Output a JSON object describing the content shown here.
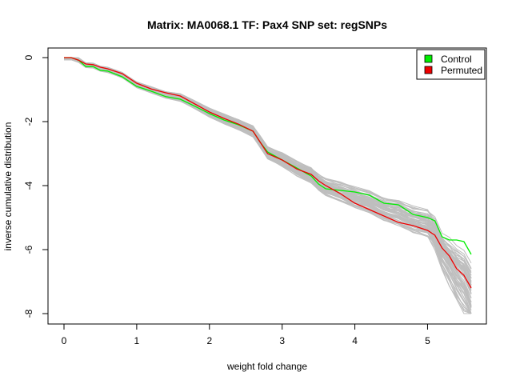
{
  "chart_data": {
    "type": "line",
    "title": "Matrix: MA0068.1 TF: Pax4 SNP set: regSNPs",
    "xlabel": "weight fold change",
    "ylabel": "inverse cumulative distribution",
    "xlim": [
      0,
      5.6
    ],
    "ylim": [
      -8,
      0
    ],
    "x_ticks": [
      0,
      1,
      2,
      3,
      4,
      5
    ],
    "y_ticks": [
      0,
      -2,
      -4,
      -6,
      -8
    ],
    "x_tick_labels": [
      "0",
      "1",
      "2",
      "3",
      "4",
      "5"
    ],
    "y_tick_labels": [
      "0",
      "-2",
      "-4",
      "-6",
      "-8"
    ],
    "grid": false,
    "legend_position": "top-right",
    "legend": [
      {
        "label": "Control",
        "color": "#00ee00"
      },
      {
        "label": "Permuted",
        "color": "#ee0000"
      }
    ],
    "background_series_color": "#bebebe",
    "background_series_count": 60,
    "series": [
      {
        "name": "Control",
        "color": "#00ee00",
        "x": [
          0.0,
          0.1,
          0.2,
          0.3,
          0.4,
          0.5,
          0.6,
          0.8,
          1.0,
          1.2,
          1.4,
          1.6,
          1.8,
          2.0,
          2.2,
          2.4,
          2.6,
          2.7,
          2.8,
          3.0,
          3.2,
          3.4,
          3.5,
          3.6,
          3.8,
          4.0,
          4.2,
          4.4,
          4.6,
          4.8,
          5.0,
          5.1,
          5.2,
          5.3,
          5.4,
          5.5,
          5.6
        ],
        "y": [
          0.0,
          0.0,
          -0.08,
          -0.28,
          -0.28,
          -0.4,
          -0.42,
          -0.6,
          -0.9,
          -1.05,
          -1.22,
          -1.3,
          -1.52,
          -1.75,
          -1.95,
          -2.1,
          -2.3,
          -2.65,
          -2.95,
          -3.2,
          -3.45,
          -3.7,
          -3.95,
          -4.1,
          -4.15,
          -4.2,
          -4.3,
          -4.55,
          -4.6,
          -4.9,
          -5.0,
          -5.1,
          -5.6,
          -5.7,
          -5.7,
          -5.75,
          -6.15
        ]
      },
      {
        "name": "Permuted",
        "color": "#ee0000",
        "x": [
          0.0,
          0.1,
          0.2,
          0.3,
          0.4,
          0.5,
          0.6,
          0.8,
          1.0,
          1.2,
          1.4,
          1.6,
          1.8,
          2.0,
          2.2,
          2.4,
          2.6,
          2.7,
          2.8,
          3.0,
          3.2,
          3.4,
          3.5,
          3.6,
          3.8,
          4.0,
          4.2,
          4.4,
          4.6,
          4.8,
          5.0,
          5.1,
          5.2,
          5.3,
          5.4,
          5.5,
          5.6
        ],
        "y": [
          0.0,
          0.0,
          -0.08,
          -0.2,
          -0.22,
          -0.3,
          -0.35,
          -0.5,
          -0.8,
          -0.98,
          -1.1,
          -1.2,
          -1.45,
          -1.7,
          -1.9,
          -2.08,
          -2.3,
          -2.65,
          -3.0,
          -3.2,
          -3.48,
          -3.65,
          -3.85,
          -4.0,
          -4.25,
          -4.55,
          -4.75,
          -4.95,
          -5.15,
          -5.25,
          -5.4,
          -5.55,
          -5.95,
          -6.2,
          -6.6,
          -6.8,
          -7.2
        ]
      }
    ]
  }
}
